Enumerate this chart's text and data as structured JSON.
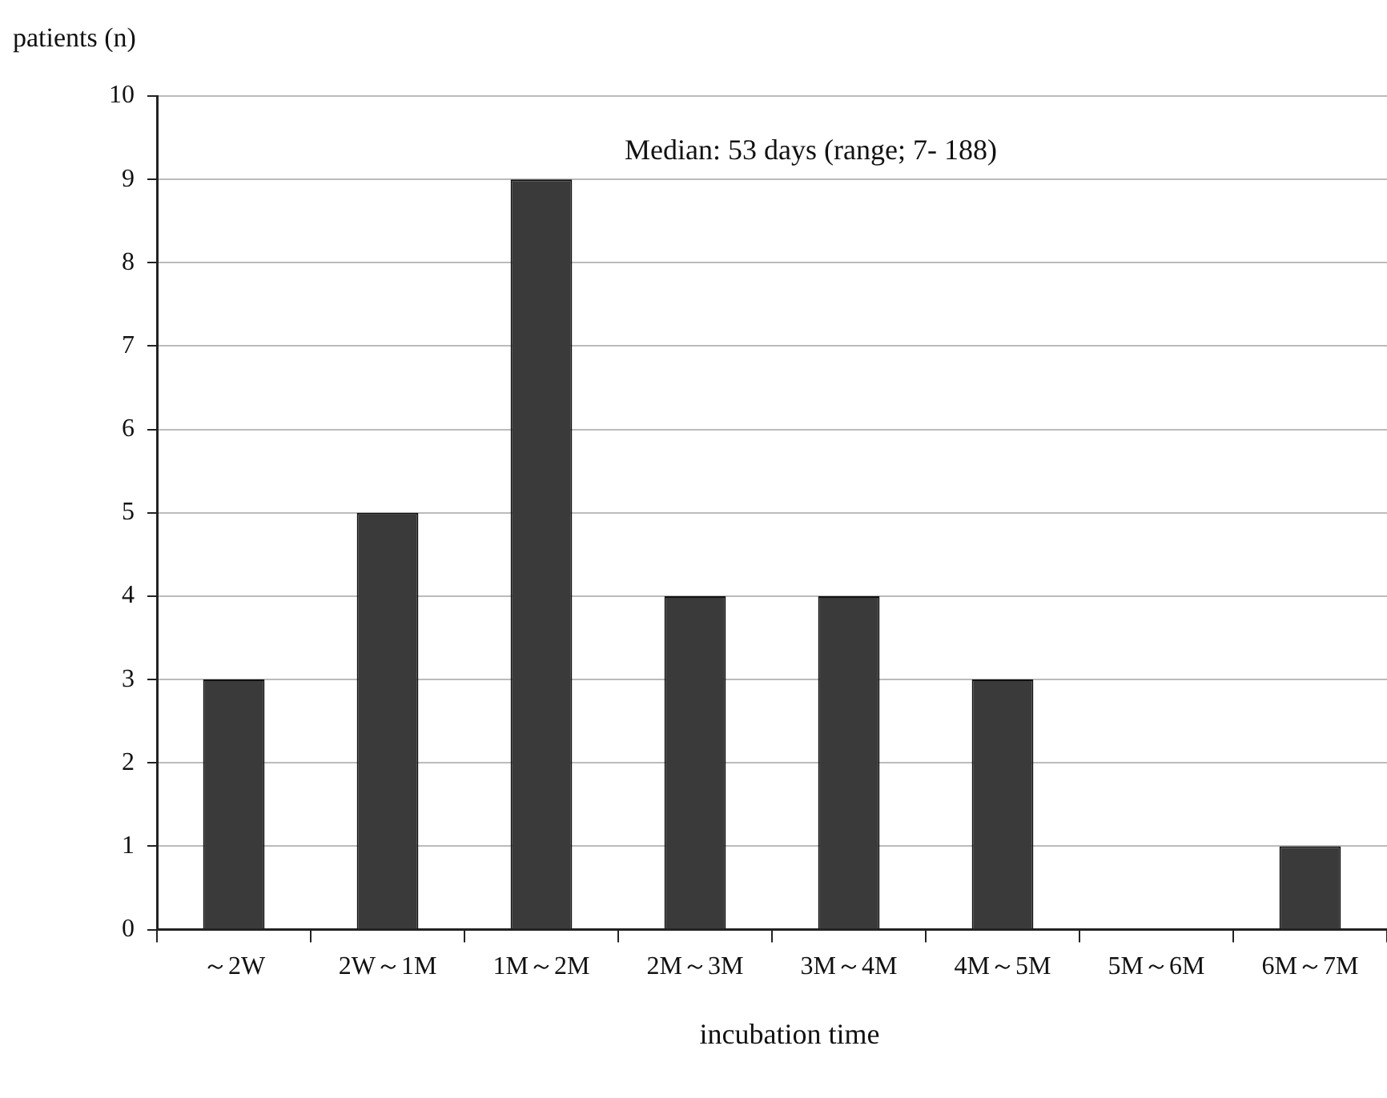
{
  "chart_data": {
    "type": "bar",
    "ylabel": "patients (n)",
    "xlabel": "incubation time",
    "categories": [
      "～2W",
      "2W～1M",
      "1M～2M",
      "2M～3M",
      "3M～4M",
      "4M～5M",
      "5M～6M",
      "6M～7M"
    ],
    "values": [
      3,
      5,
      9,
      4,
      4,
      3,
      0,
      1
    ],
    "color": "#3a3a3a",
    "ylim": [
      0,
      10
    ],
    "yticks": [
      0,
      1,
      2,
      3,
      4,
      5,
      6,
      7,
      8,
      9,
      10
    ],
    "grid": "y",
    "annotations": [
      "Median: 53 days (range; 7- 188)"
    ]
  }
}
